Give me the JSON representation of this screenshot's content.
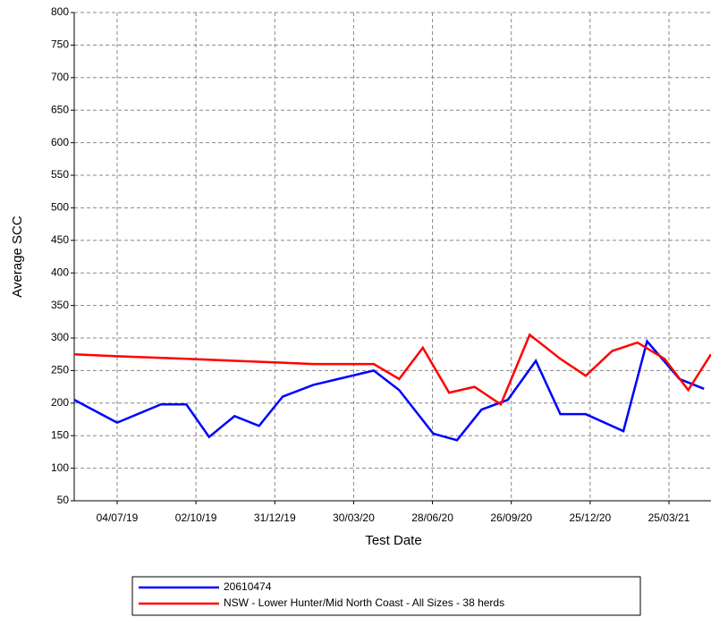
{
  "chart_data": {
    "type": "line",
    "xlabel": "Test Date",
    "ylabel": "Average SCC",
    "xlim": [
      "16/05/19",
      "12/05/21"
    ],
    "xticks": [
      "04/07/19",
      "02/10/19",
      "31/12/19",
      "30/03/20",
      "28/06/20",
      "26/09/20",
      "25/12/20",
      "25/03/21"
    ],
    "ylim": [
      50,
      800
    ],
    "yticks": [
      50,
      100,
      150,
      200,
      250,
      300,
      350,
      400,
      450,
      500,
      550,
      600,
      650,
      700,
      750,
      800
    ],
    "grid": true,
    "legend": "bottom",
    "series": [
      {
        "name": "20610474",
        "color": "#0000ff",
        "x": [
          "16/05/19",
          "04/07/19",
          "23/08/19",
          "21/09/19",
          "17/10/19",
          "15/11/19",
          "13/12/19",
          "09/01/20",
          "13/02/20",
          "22/04/20",
          "21/05/20",
          "29/06/20",
          "26/07/20",
          "23/08/20",
          "22/09/20",
          "24/10/20",
          "21/11/20",
          "20/12/20",
          "01/02/21",
          "28/02/21",
          "06/04/21",
          "04/05/21"
        ],
        "values": [
          205,
          170,
          198,
          198,
          148,
          180,
          165,
          210,
          228,
          250,
          220,
          153,
          143,
          190,
          205,
          265,
          183,
          183,
          157,
          295,
          237,
          222
        ]
      },
      {
        "name": "NSW - Lower Hunter/Mid North Coast - All Sizes - 38 herds",
        "color": "#ff0000",
        "x": [
          "16/05/19",
          "04/07/19",
          "21/09/19",
          "15/11/19",
          "09/01/20",
          "13/02/20",
          "22/04/20",
          "21/05/20",
          "17/06/20",
          "17/07/20",
          "15/08/20",
          "14/09/20",
          "17/10/20",
          "21/11/20",
          "20/12/20",
          "19/01/21",
          "17/02/21",
          "20/03/21",
          "16/04/21",
          "12/05/21"
        ],
        "values": [
          275,
          272,
          268,
          265,
          262,
          260,
          260,
          237,
          285,
          216,
          225,
          198,
          305,
          268,
          242,
          280,
          293,
          268,
          220,
          275
        ]
      }
    ]
  }
}
